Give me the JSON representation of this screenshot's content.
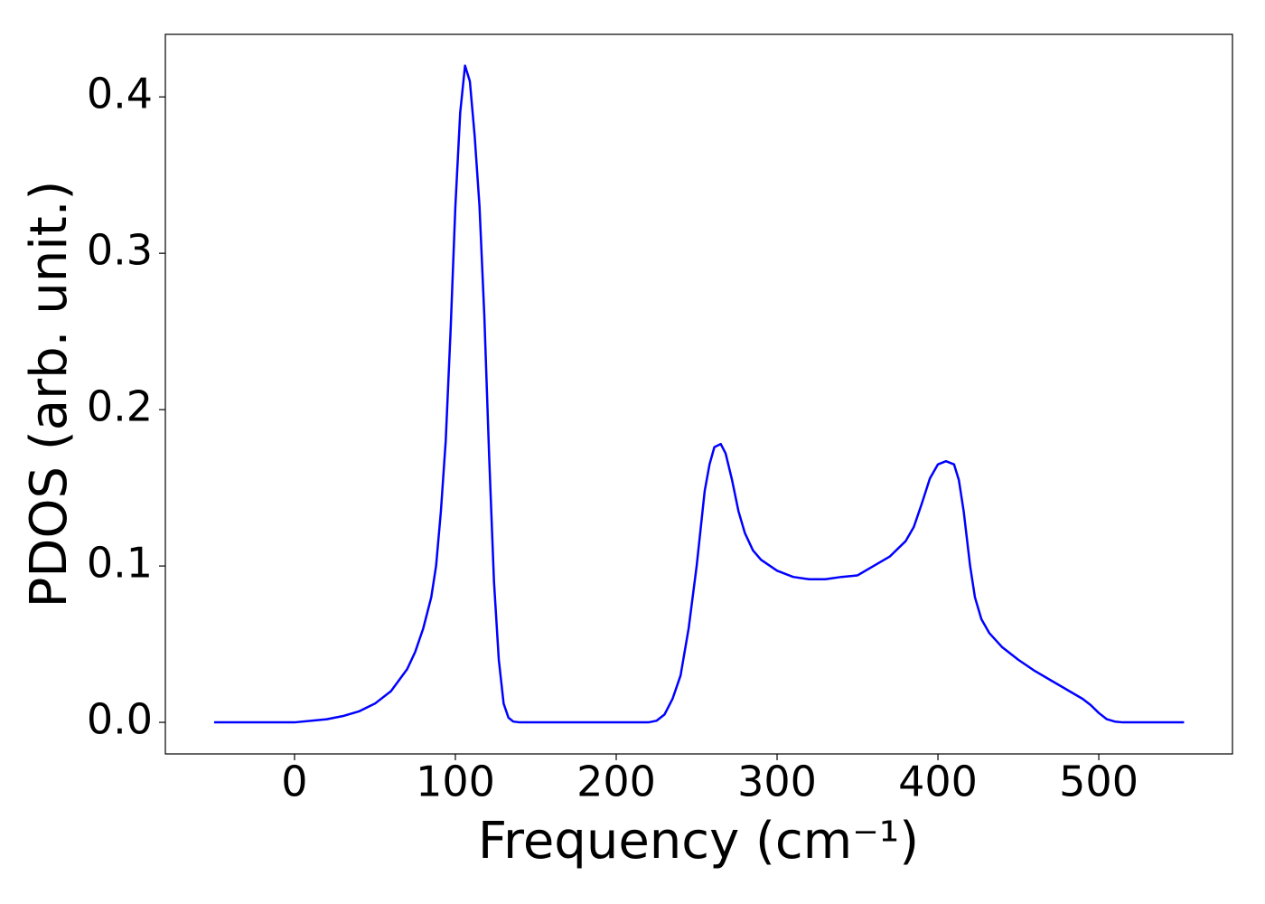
{
  "chart_data": {
    "type": "line",
    "xlabel": "Frequency (cm⁻¹)",
    "ylabel": "PDOS (arb. unit.)",
    "x": [
      -50,
      0,
      20,
      30,
      40,
      50,
      60,
      70,
      75,
      80,
      85,
      88,
      91,
      94,
      97,
      100,
      103,
      106,
      109,
      112,
      115,
      118,
      121,
      124,
      127,
      130,
      133,
      136,
      140,
      220,
      225,
      230,
      235,
      240,
      245,
      250,
      255,
      258,
      261,
      265,
      268,
      272,
      276,
      280,
      285,
      290,
      300,
      310,
      320,
      330,
      340,
      350,
      360,
      370,
      380,
      385,
      390,
      395,
      400,
      405,
      410,
      413,
      416,
      420,
      423,
      427,
      432,
      440,
      450,
      460,
      470,
      480,
      490,
      495,
      500,
      505,
      510,
      515,
      553
    ],
    "series": [
      {
        "color": "#0000ff",
        "values": [
          0,
          0,
          0.002,
          0.004,
          0.007,
          0.012,
          0.02,
          0.034,
          0.045,
          0.06,
          0.08,
          0.1,
          0.135,
          0.18,
          0.25,
          0.33,
          0.39,
          0.42,
          0.41,
          0.375,
          0.33,
          0.26,
          0.17,
          0.09,
          0.04,
          0.012,
          0.003,
          0.0005,
          0,
          0,
          0.001,
          0.005,
          0.015,
          0.03,
          0.06,
          0.1,
          0.148,
          0.165,
          0.176,
          0.178,
          0.172,
          0.155,
          0.135,
          0.121,
          0.11,
          0.104,
          0.097,
          0.093,
          0.0915,
          0.0915,
          0.093,
          0.094,
          0.1,
          0.106,
          0.116,
          0.125,
          0.14,
          0.156,
          0.165,
          0.167,
          0.165,
          0.155,
          0.135,
          0.1,
          0.08,
          0.066,
          0.057,
          0.048,
          0.04,
          0.033,
          0.027,
          0.021,
          0.015,
          0.011,
          0.006,
          0.002,
          0.0005,
          0,
          0
        ]
      }
    ],
    "xlim": [
      -80.3,
      583.1
    ],
    "ylim": [
      -0.0202,
      0.44
    ],
    "xticks": [
      0,
      100,
      200,
      300,
      400,
      500
    ],
    "yticks": [
      {
        "value": 0,
        "label": "0.0"
      },
      0.1,
      0.2,
      0.3,
      0.4
    ],
    "grid": false
  }
}
